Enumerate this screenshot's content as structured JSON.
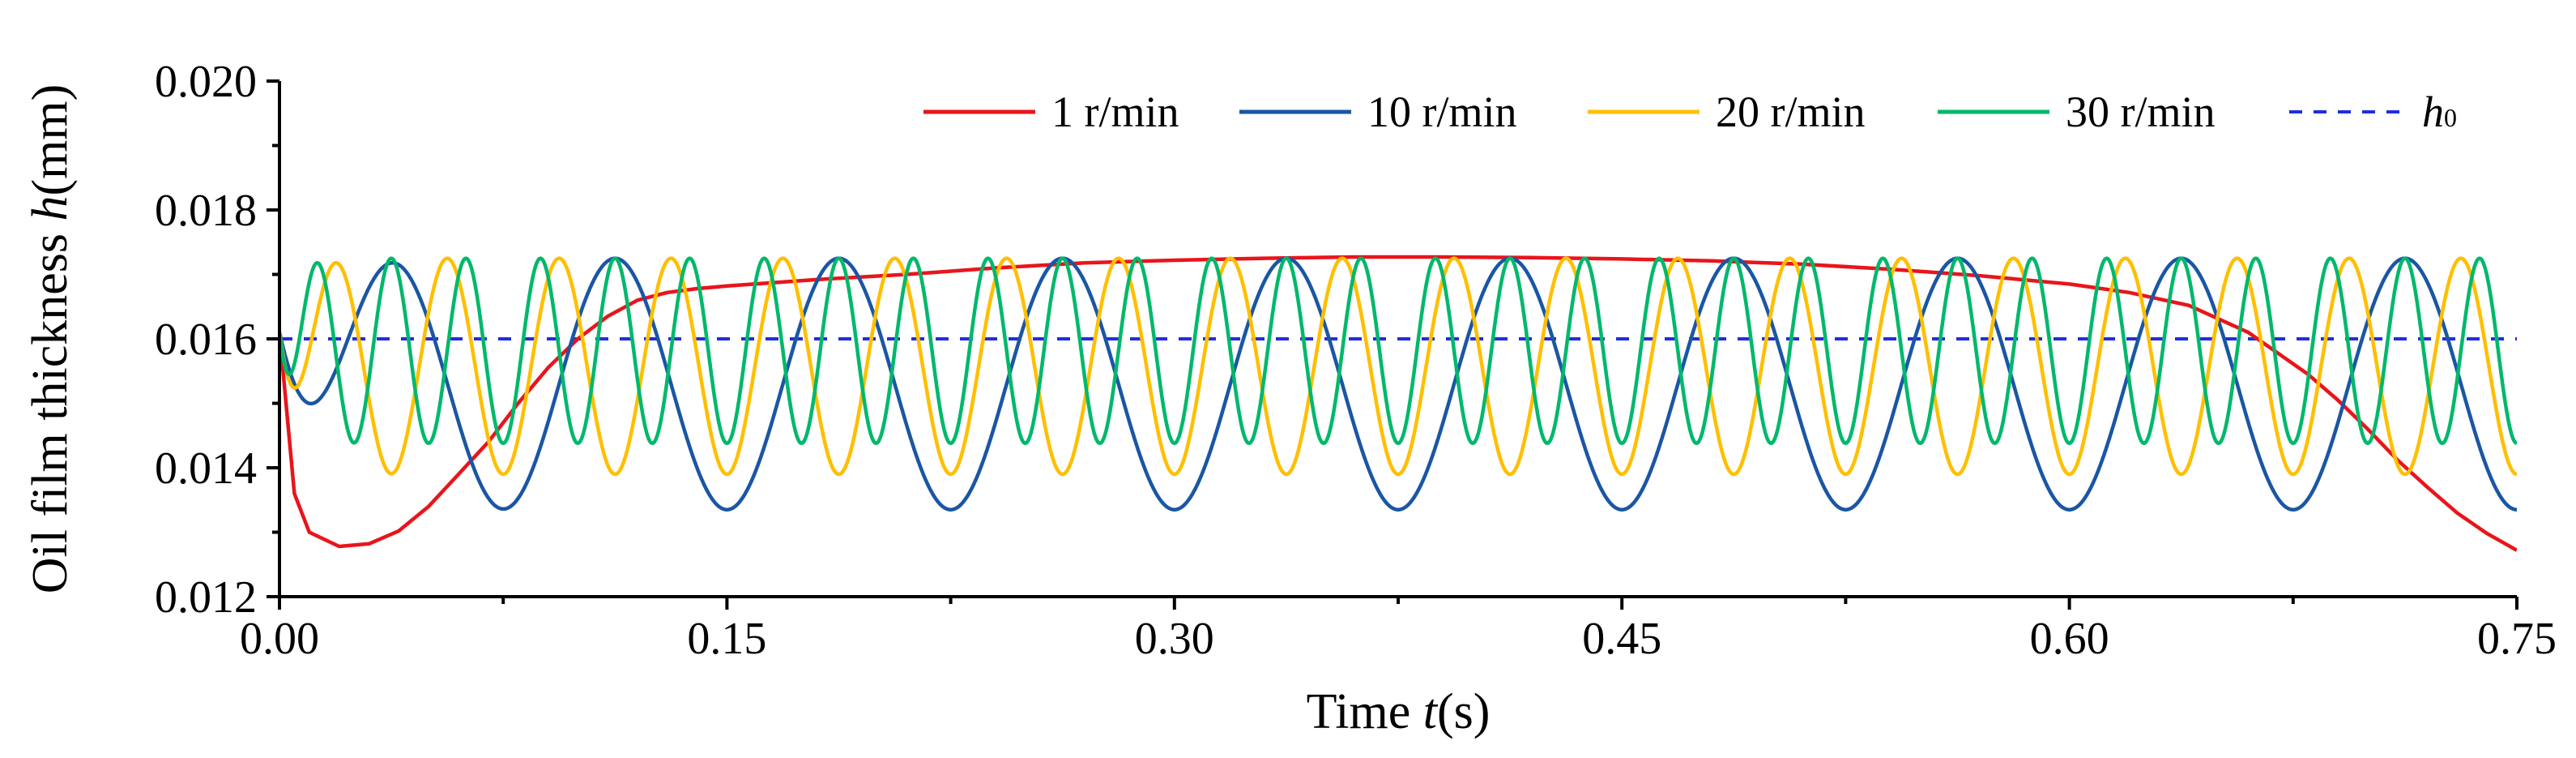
{
  "chart_data": {
    "type": "line",
    "title": "",
    "xlabel": {
      "prefix": "Time ",
      "var": "t",
      "unit": "(s)"
    },
    "ylabel": {
      "prefix": "Oil film thickness ",
      "var": "h",
      "unit": "(mm)"
    },
    "xlim": [
      0.0,
      0.75
    ],
    "ylim": [
      0.012,
      0.02
    ],
    "xticks": [
      0.0,
      0.15,
      0.3,
      0.45,
      0.6,
      0.75
    ],
    "xtick_labels": [
      "0.00",
      "0.15",
      "0.30",
      "0.45",
      "0.60",
      "0.75"
    ],
    "yticks": [
      0.012,
      0.014,
      0.016,
      0.018,
      0.02
    ],
    "ytick_labels": [
      "0.012",
      "0.014",
      "0.016",
      "0.018",
      "0.020"
    ],
    "grid": false,
    "legend_position": "top-right",
    "h0": 0.016,
    "series": [
      {
        "name": "1 r/min",
        "color": "#e8151b",
        "dash": "solid",
        "x": [
          0.0,
          0.005,
          0.01,
          0.02,
          0.03,
          0.04,
          0.05,
          0.06,
          0.07,
          0.08,
          0.09,
          0.1,
          0.11,
          0.12,
          0.13,
          0.14,
          0.15,
          0.18,
          0.21,
          0.24,
          0.27,
          0.3,
          0.33,
          0.36,
          0.39,
          0.42,
          0.45,
          0.48,
          0.51,
          0.54,
          0.57,
          0.6,
          0.62,
          0.64,
          0.66,
          0.68,
          0.69,
          0.7,
          0.71,
          0.72,
          0.73,
          0.74,
          0.75
        ],
        "y": [
          0.0161,
          0.0136,
          0.013,
          0.01278,
          0.01282,
          0.01302,
          0.0134,
          0.0139,
          0.0144,
          0.015,
          0.01555,
          0.016,
          0.01635,
          0.0166,
          0.01672,
          0.01678,
          0.01682,
          0.01692,
          0.017,
          0.0171,
          0.01718,
          0.01722,
          0.01725,
          0.01727,
          0.01727,
          0.01726,
          0.01724,
          0.01721,
          0.01716,
          0.01708,
          0.01698,
          0.01685,
          0.01672,
          0.01652,
          0.0161,
          0.01545,
          0.01505,
          0.0146,
          0.01412,
          0.0137,
          0.0133,
          0.01298,
          0.01272
        ]
      },
      {
        "name": "10 r/min",
        "color": "#1a56a4",
        "dash": "solid",
        "period": 0.075,
        "max": 0.01725,
        "min": 0.01335,
        "start": 0.0161
      },
      {
        "name": "20 r/min",
        "color": "#ffbf00",
        "dash": "solid",
        "period": 0.0375,
        "max": 0.01725,
        "min": 0.0139,
        "start": 0.0161
      },
      {
        "name": "30 r/min",
        "color": "#00b86b",
        "dash": "solid",
        "period": 0.025,
        "max": 0.01725,
        "min": 0.01438,
        "start": 0.0161
      },
      {
        "name": "h0",
        "label_var": "h",
        "label_sub": "0",
        "color": "#1f2ee0",
        "dash": "dashed",
        "x": [
          0.0,
          0.75
        ],
        "y": [
          0.016,
          0.016
        ]
      }
    ]
  }
}
